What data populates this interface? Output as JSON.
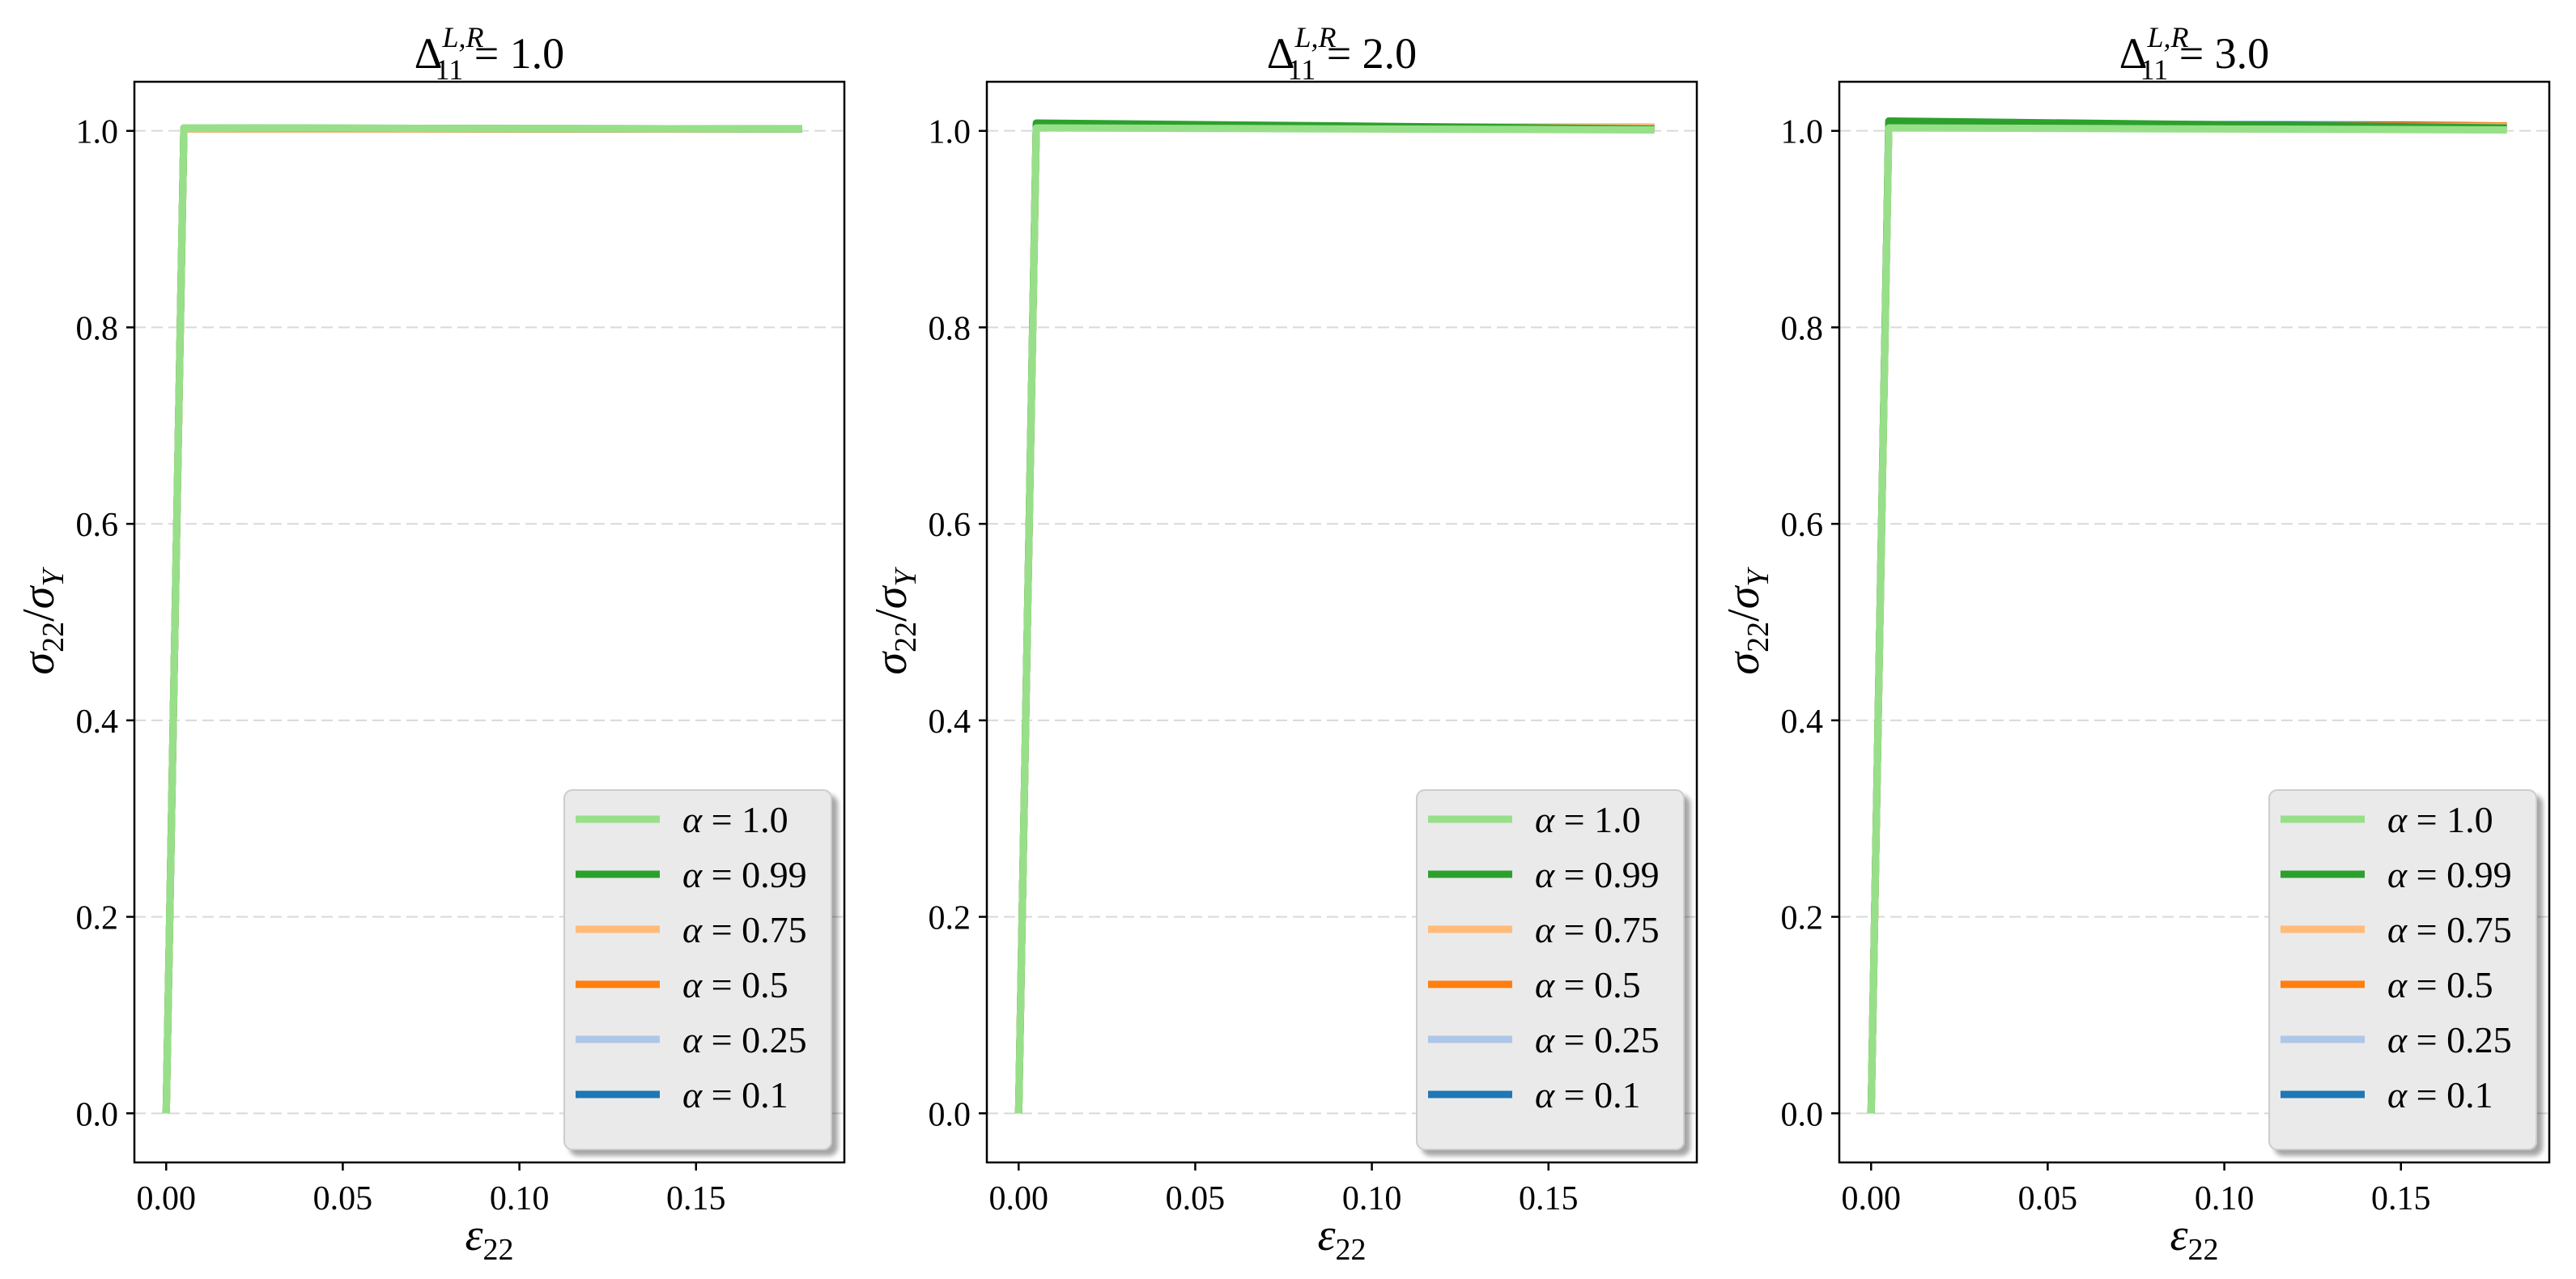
{
  "chart_data": [
    {
      "type": "line",
      "title": {
        "base": "Δ",
        "sub": "11",
        "sup": "L,R",
        "value": "1.0"
      },
      "xlabel": {
        "base": "ε",
        "sub": "22"
      },
      "ylabel": {
        "num": "σ",
        "num_sub": "22",
        "den": "σ",
        "den_sub": "Y"
      },
      "xlim": [
        -0.009,
        0.192
      ],
      "ylim": [
        -0.05,
        1.05
      ],
      "xticks": [
        0.0,
        0.05,
        0.1,
        0.15
      ],
      "xtick_labels": [
        "0.00",
        "0.05",
        "0.10",
        "0.15"
      ],
      "yticks": [
        0.0,
        0.2,
        0.4,
        0.6,
        0.8,
        1.0
      ],
      "ytick_labels": [
        "0.0",
        "0.2",
        "0.4",
        "0.6",
        "0.8",
        "1.0"
      ],
      "grid": "y-dashed",
      "legend": "lower-right",
      "series": [
        {
          "name": "α = 0.1",
          "color": "#1f77b4",
          "x": [
            0,
            0.005,
            0.18
          ],
          "y": [
            0,
            1.002,
            1.002
          ]
        },
        {
          "name": "α = 0.25",
          "color": "#aec7e8",
          "x": [
            0,
            0.005,
            0.18
          ],
          "y": [
            0,
            1.002,
            1.002
          ]
        },
        {
          "name": "α = 0.5",
          "color": "#ff7f0e",
          "x": [
            0,
            0.005,
            0.18
          ],
          "y": [
            0,
            1.002,
            1.002
          ]
        },
        {
          "name": "α = 0.75",
          "color": "#ffbb78",
          "x": [
            0,
            0.005,
            0.18
          ],
          "y": [
            0,
            1.002,
            1.002
          ]
        },
        {
          "name": "α = 0.99",
          "color": "#2ca02c",
          "x": [
            0,
            0.005,
            0.18
          ],
          "y": [
            0,
            1.003,
            1.002
          ]
        },
        {
          "name": "α = 1.0",
          "color": "#98df8a",
          "x": [
            0,
            0.005,
            0.18
          ],
          "y": [
            0,
            1.003,
            1.002
          ]
        }
      ]
    },
    {
      "type": "line",
      "title": {
        "base": "Δ",
        "sub": "11",
        "sup": "L,R",
        "value": "2.0"
      },
      "xlabel": {
        "base": "ε",
        "sub": "22"
      },
      "ylabel": {
        "num": "σ",
        "num_sub": "22",
        "den": "σ",
        "den_sub": "Y"
      },
      "xlim": [
        -0.009,
        0.192
      ],
      "ylim": [
        -0.05,
        1.05
      ],
      "xticks": [
        0.0,
        0.05,
        0.1,
        0.15
      ],
      "xtick_labels": [
        "0.00",
        "0.05",
        "0.10",
        "0.15"
      ],
      "yticks": [
        0.0,
        0.2,
        0.4,
        0.6,
        0.8,
        1.0
      ],
      "ytick_labels": [
        "0.0",
        "0.2",
        "0.4",
        "0.6",
        "0.8",
        "1.0"
      ],
      "grid": "y-dashed",
      "legend": "lower-right",
      "series": [
        {
          "name": "α = 0.1",
          "color": "#1f77b4",
          "x": [
            0,
            0.005,
            0.03,
            0.1,
            0.18
          ],
          "y": [
            0,
            1.006,
            1.005,
            1.004,
            1.003
          ]
        },
        {
          "name": "α = 0.25",
          "color": "#aec7e8",
          "x": [
            0,
            0.005,
            0.05,
            0.18
          ],
          "y": [
            0,
            1.005,
            1.004,
            1.003
          ]
        },
        {
          "name": "α = 0.5",
          "color": "#ff7f0e",
          "x": [
            0,
            0.005,
            0.1,
            0.18
          ],
          "y": [
            0,
            1.004,
            1.003,
            1.003
          ]
        },
        {
          "name": "α = 0.75",
          "color": "#ffbb78",
          "x": [
            0,
            0.005,
            0.18
          ],
          "y": [
            0,
            1.004,
            1.004
          ]
        },
        {
          "name": "α = 0.99",
          "color": "#2ca02c",
          "x": [
            0,
            0.005,
            0.18
          ],
          "y": [
            0,
            1.008,
            1.002
          ]
        },
        {
          "name": "α = 1.0",
          "color": "#98df8a",
          "x": [
            0,
            0.005,
            0.18
          ],
          "y": [
            0,
            1.003,
            1.001
          ]
        }
      ]
    },
    {
      "type": "line",
      "title": {
        "base": "Δ",
        "sub": "11",
        "sup": "L,R",
        "value": "3.0"
      },
      "xlabel": {
        "base": "ε",
        "sub": "22"
      },
      "ylabel": {
        "num": "σ",
        "num_sub": "22",
        "den": "σ",
        "den_sub": "Y"
      },
      "xlim": [
        -0.009,
        0.192
      ],
      "ylim": [
        -0.05,
        1.05
      ],
      "xticks": [
        0.0,
        0.05,
        0.1,
        0.15
      ],
      "xtick_labels": [
        "0.00",
        "0.05",
        "0.10",
        "0.15"
      ],
      "yticks": [
        0.0,
        0.2,
        0.4,
        0.6,
        0.8,
        1.0
      ],
      "ytick_labels": [
        "0.0",
        "0.2",
        "0.4",
        "0.6",
        "0.8",
        "1.0"
      ],
      "grid": "y-dashed",
      "legend": "lower-right",
      "series": [
        {
          "name": "α = 0.1",
          "color": "#1f77b4",
          "x": [
            0,
            0.005,
            0.03,
            0.15,
            0.18
          ],
          "y": [
            0,
            1.008,
            1.007,
            1.006,
            1.005
          ]
        },
        {
          "name": "α = 0.25",
          "color": "#aec7e8",
          "x": [
            0,
            0.005,
            0.05,
            0.18
          ],
          "y": [
            0,
            1.007,
            1.006,
            1.005
          ]
        },
        {
          "name": "α = 0.5",
          "color": "#ff7f0e",
          "x": [
            0,
            0.005,
            0.18
          ],
          "y": [
            0,
            1.006,
            1.005
          ]
        },
        {
          "name": "α = 0.75",
          "color": "#ffbb78",
          "x": [
            0,
            0.005,
            0.18
          ],
          "y": [
            0,
            1.005,
            1.004
          ]
        },
        {
          "name": "α = 0.99",
          "color": "#2ca02c",
          "x": [
            0,
            0.005,
            0.18
          ],
          "y": [
            0,
            1.01,
            1.003
          ]
        },
        {
          "name": "α = 1.0",
          "color": "#98df8a",
          "x": [
            0,
            0.005,
            0.18
          ],
          "y": [
            0,
            1.003,
            1.001
          ]
        }
      ]
    }
  ]
}
